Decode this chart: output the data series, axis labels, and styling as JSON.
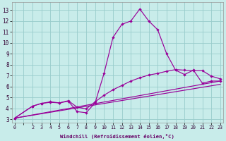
{
  "bg_color": "#c8ecea",
  "line_color": "#990099",
  "grid_color": "#99cccc",
  "xlabel": "Windchill (Refroidissement éolien,°C)",
  "yticks": [
    3,
    4,
    5,
    6,
    7,
    8,
    9,
    10,
    11,
    12,
    13
  ],
  "xlim": [
    -0.3,
    23.3
  ],
  "ylim": [
    2.7,
    13.7
  ],
  "line1_x": [
    0,
    2,
    3,
    4,
    5,
    6,
    7,
    8,
    9,
    10,
    11,
    12,
    13,
    14,
    15,
    16,
    17,
    18,
    19,
    20,
    21,
    22,
    23
  ],
  "line1_y": [
    3.1,
    4.2,
    4.45,
    4.6,
    4.5,
    4.65,
    3.7,
    3.6,
    4.5,
    7.2,
    10.5,
    11.7,
    12.0,
    13.1,
    12.0,
    11.2,
    9.0,
    7.5,
    7.1,
    7.5,
    6.3,
    6.5,
    6.5
  ],
  "line2_x": [
    0,
    2,
    3,
    4,
    5,
    6,
    7,
    8,
    9,
    10,
    11,
    12,
    13,
    14,
    15,
    16,
    17,
    18,
    19,
    20,
    21,
    22,
    23
  ],
  "line2_y": [
    3.1,
    4.2,
    4.45,
    4.55,
    4.5,
    4.7,
    4.1,
    3.95,
    4.6,
    5.2,
    5.7,
    6.1,
    6.5,
    6.8,
    7.05,
    7.2,
    7.4,
    7.55,
    7.5,
    7.45,
    7.45,
    6.95,
    6.7
  ],
  "line3_x": [
    0,
    23
  ],
  "line3_y": [
    3.1,
    6.5
  ],
  "line4_x": [
    0,
    23
  ],
  "line4_y": [
    3.1,
    6.2
  ]
}
